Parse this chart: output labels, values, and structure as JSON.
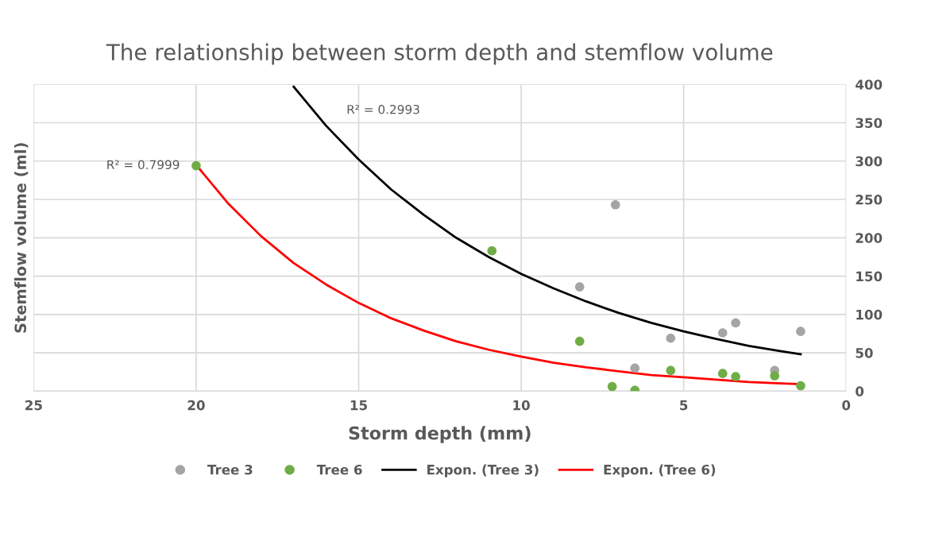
{
  "chart_data": {
    "type": "scatter",
    "title": "The relationship between storm depth and stemflow volume",
    "xlabel": "Storm depth (mm)",
    "ylabel": "Stemflow volume (ml)",
    "xlim": [
      25,
      0
    ],
    "xticks": [
      25,
      20,
      15,
      10,
      5,
      0
    ],
    "ylim": [
      0,
      400
    ],
    "yticks": [
      0,
      50,
      100,
      150,
      200,
      250,
      300,
      350,
      400
    ],
    "grid": true,
    "legend": "bottom",
    "series": [
      {
        "name": "Tree 3",
        "marker": "circle",
        "color": "#a5a5a5",
        "x": [
          7.1,
          8.2,
          5.4,
          3.8,
          3.4,
          1.4,
          6.5,
          2.2
        ],
        "values": [
          243,
          136,
          69,
          76,
          89,
          78,
          30,
          27
        ]
      },
      {
        "name": "Tree 6",
        "marker": "circle",
        "color": "#70ad47",
        "x": [
          20,
          10.9,
          8.2,
          7.2,
          6.5,
          5.4,
          3.8,
          3.4,
          2.2,
          1.4
        ],
        "values": [
          294,
          183,
          65,
          6,
          1,
          27,
          23,
          19,
          20,
          7
        ]
      },
      {
        "name": "Expon. (Tree 3)",
        "type": "line",
        "color": "#000000",
        "line_style": "solid",
        "x": [
          17,
          16,
          15,
          14,
          13,
          12,
          11,
          10,
          9,
          8,
          7,
          6,
          5,
          4,
          3,
          2,
          1.4
        ],
        "values": [
          397,
          346,
          302,
          263,
          230,
          200,
          175,
          153,
          134,
          117,
          102,
          89,
          78,
          68,
          59,
          52,
          48
        ]
      },
      {
        "name": "Expon. (Tree 6)",
        "type": "line",
        "color": "#ff0000",
        "line_style": "solid",
        "x": [
          20,
          19,
          18,
          17,
          16,
          15,
          14,
          13,
          12,
          11,
          10,
          9,
          8,
          7,
          6,
          5,
          4,
          3,
          2,
          1.4
        ],
        "values": [
          295,
          244,
          202,
          167,
          139,
          115,
          95,
          79,
          65,
          54,
          45,
          37,
          31,
          26,
          21,
          18,
          15,
          12,
          10,
          9
        ]
      }
    ],
    "annotations": [
      "R² = 0.2993",
      "R² = 0.7999"
    ]
  }
}
